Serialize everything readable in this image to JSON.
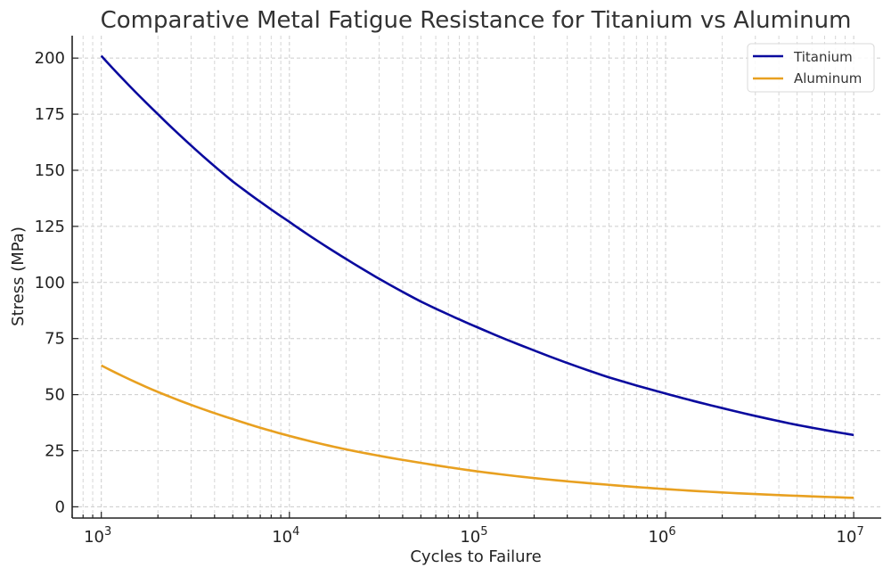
{
  "chart_data": {
    "type": "line",
    "title": "Comparative Metal Fatigue Resistance for Titanium vs Aluminum",
    "xlabel": "Cycles to Failure",
    "ylabel": "Stress (MPa)",
    "xscale": "log",
    "xlim": [
      700,
      14000000
    ],
    "ylim": [
      -5,
      210
    ],
    "grid": true,
    "legend_position": "top-right",
    "x_ticks": [
      {
        "value": 1000,
        "base": "10",
        "exp": "3"
      },
      {
        "value": 10000,
        "base": "10",
        "exp": "4"
      },
      {
        "value": 100000,
        "base": "10",
        "exp": "5"
      },
      {
        "value": 1000000,
        "base": "10",
        "exp": "6"
      },
      {
        "value": 10000000,
        "base": "10",
        "exp": "7"
      }
    ],
    "y_ticks": [
      0,
      25,
      50,
      75,
      100,
      125,
      150,
      175,
      200
    ],
    "y_tick_labels": [
      "0",
      "25",
      "50",
      "75",
      "100",
      "125",
      "150",
      "175",
      "200"
    ],
    "series": [
      {
        "name": "Titanium",
        "color": "#0a0a9e",
        "x": [
          1000,
          2000,
          5000,
          10000,
          20000,
          50000,
          100000,
          200000,
          500000,
          1000000,
          2000000,
          5000000,
          10000000
        ],
        "values": [
          201,
          175,
          145,
          127,
          110.5,
          91.5,
          80,
          69.7,
          57.7,
          50.5,
          44,
          36.5,
          32
        ]
      },
      {
        "name": "Aluminum",
        "color": "#e8a020",
        "x": [
          1000,
          2000,
          5000,
          10000,
          20000,
          50000,
          100000,
          200000,
          500000,
          1000000,
          2000000,
          5000000,
          10000000
        ],
        "values": [
          63,
          51.2,
          39.1,
          31.6,
          25.6,
          19.6,
          15.8,
          12.8,
          9.8,
          7.9,
          6.4,
          4.9,
          4
        ]
      }
    ]
  }
}
